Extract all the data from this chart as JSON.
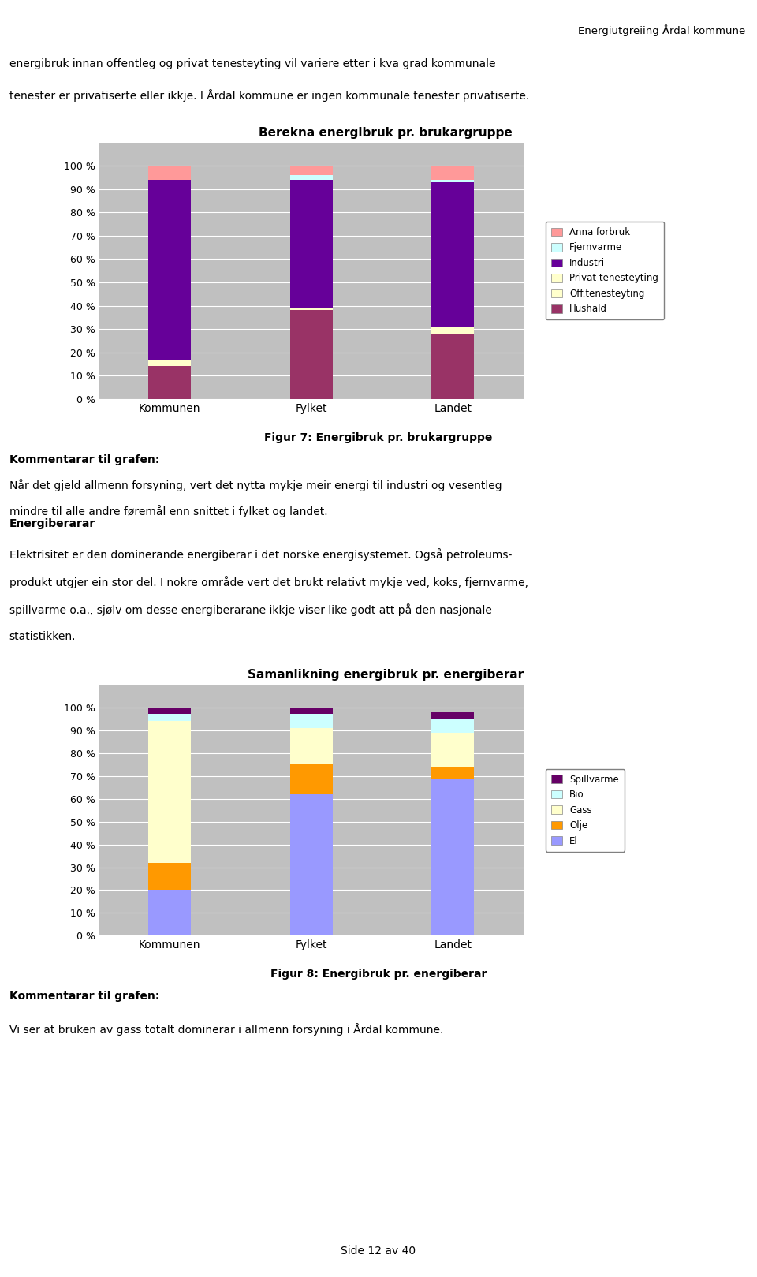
{
  "page_header": "Energiutgreiing Årdal kommune",
  "intro_text_line1": "energibruk innan offentleg og privat tenesteyting vil variere etter i kva grad kommunale",
  "intro_text_line2": "tenester er privatiserte eller ikkje. I Årdal kommune er ingen kommunale tenester privatiserte.",
  "chart1_title": "Berekna energibruk pr. brukargruppe",
  "chart1_categories": [
    "Kommunen",
    "Fylket",
    "Landet"
  ],
  "chart1_layers": [
    "Hushald",
    "Off.tenesteyting",
    "Privat tenesteyting",
    "Industri",
    "Fjernvarme",
    "Anna forbruk"
  ],
  "chart1_colors": [
    "#993366",
    "#ffffcc",
    "#ffffcc",
    "#660099",
    "#ccffff",
    "#ff9999"
  ],
  "chart1_data": {
    "Hushald": [
      14,
      38,
      28
    ],
    "Off.tenesteyting": [
      2,
      1,
      2
    ],
    "Privat tenesteyting": [
      1,
      0,
      1
    ],
    "Industri": [
      77,
      55,
      62
    ],
    "Fjernvarme": [
      0,
      2,
      1
    ],
    "Anna forbruk": [
      6,
      4,
      6
    ]
  },
  "chart1_fig7_label": "Figur 7: Energibruk pr. brukargruppe",
  "text_kommentarar1": "Kommentarar til grafen:",
  "text_body1a": "Når det gjeld allmenn forsyning, vert det nytta mykje meir energi til industri og vesentleg",
  "text_body1b": "mindre til alle andre føremål enn snittet i fylket og landet.",
  "text_energiberarar": "Energiberarar",
  "text_body2a": "Elektrisitet er den dominerande energiberar i det norske energisystemet. Også petroleums-",
  "text_body2b": "produkt utgjer ein stor del. I nokre område vert det brukt relativt mykje ved, koks, fjernvarme,",
  "text_body2c": "spillvarme o.a., sjølv om desse energiberarane ikkje viser like godt att på den nasjonale",
  "text_body2d": "statistikken.",
  "chart2_title": "Samanlikning energibruk pr. energiberar",
  "chart2_categories": [
    "Kommunen",
    "Fylket",
    "Landet"
  ],
  "chart2_layers": [
    "El",
    "Olje",
    "Gass",
    "Bio",
    "Spillvarme"
  ],
  "chart2_colors": [
    "#9999ff",
    "#ff9900",
    "#ffffcc",
    "#ccffff",
    "#660066"
  ],
  "chart2_data": {
    "El": [
      20,
      62,
      69
    ],
    "Olje": [
      12,
      13,
      5
    ],
    "Gass": [
      62,
      16,
      15
    ],
    "Bio": [
      3,
      6,
      6
    ],
    "Spillvarme": [
      3,
      3,
      3
    ]
  },
  "chart2_fig8_label": "Figur 8: Energibruk pr. energiberar",
  "text_kommentarar2": "Kommentarar til grafen:",
  "text_body3": "Vi ser at bruken av gass totalt dominerar i allmenn forsyning i Årdal kommune.",
  "footer": "Side 12 av 40",
  "bg_color": "#ffffff",
  "chart_bg": "#c0c0c0",
  "legend_border": "#808080"
}
